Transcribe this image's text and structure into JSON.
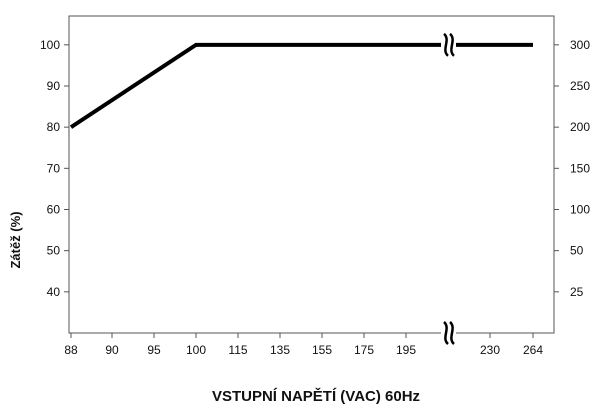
{
  "chart_data": {
    "type": "line",
    "title": "",
    "xlabel": "VSTUPNÍ NAPĚTÍ (VAC) 60Hz",
    "ylabel": "Zátěž (%)",
    "y2label": "",
    "x_categories": [
      "88",
      "90",
      "95",
      "100",
      "115",
      "135",
      "155",
      "175",
      "195",
      "230",
      "264"
    ],
    "x_axis_break_between": [
      "195",
      "230"
    ],
    "y_ticks": [
      40,
      50,
      60,
      70,
      80,
      90,
      100
    ],
    "ylim": [
      30,
      107
    ],
    "y2_ticks": [
      25,
      50,
      100,
      150,
      200,
      250,
      300
    ],
    "grid": false,
    "series": [
      {
        "color": "#000000",
        "points": [
          {
            "x": "88",
            "y": 80
          },
          {
            "x": "100",
            "y": 100
          },
          {
            "x": "264",
            "y": 100
          }
        ]
      }
    ]
  }
}
